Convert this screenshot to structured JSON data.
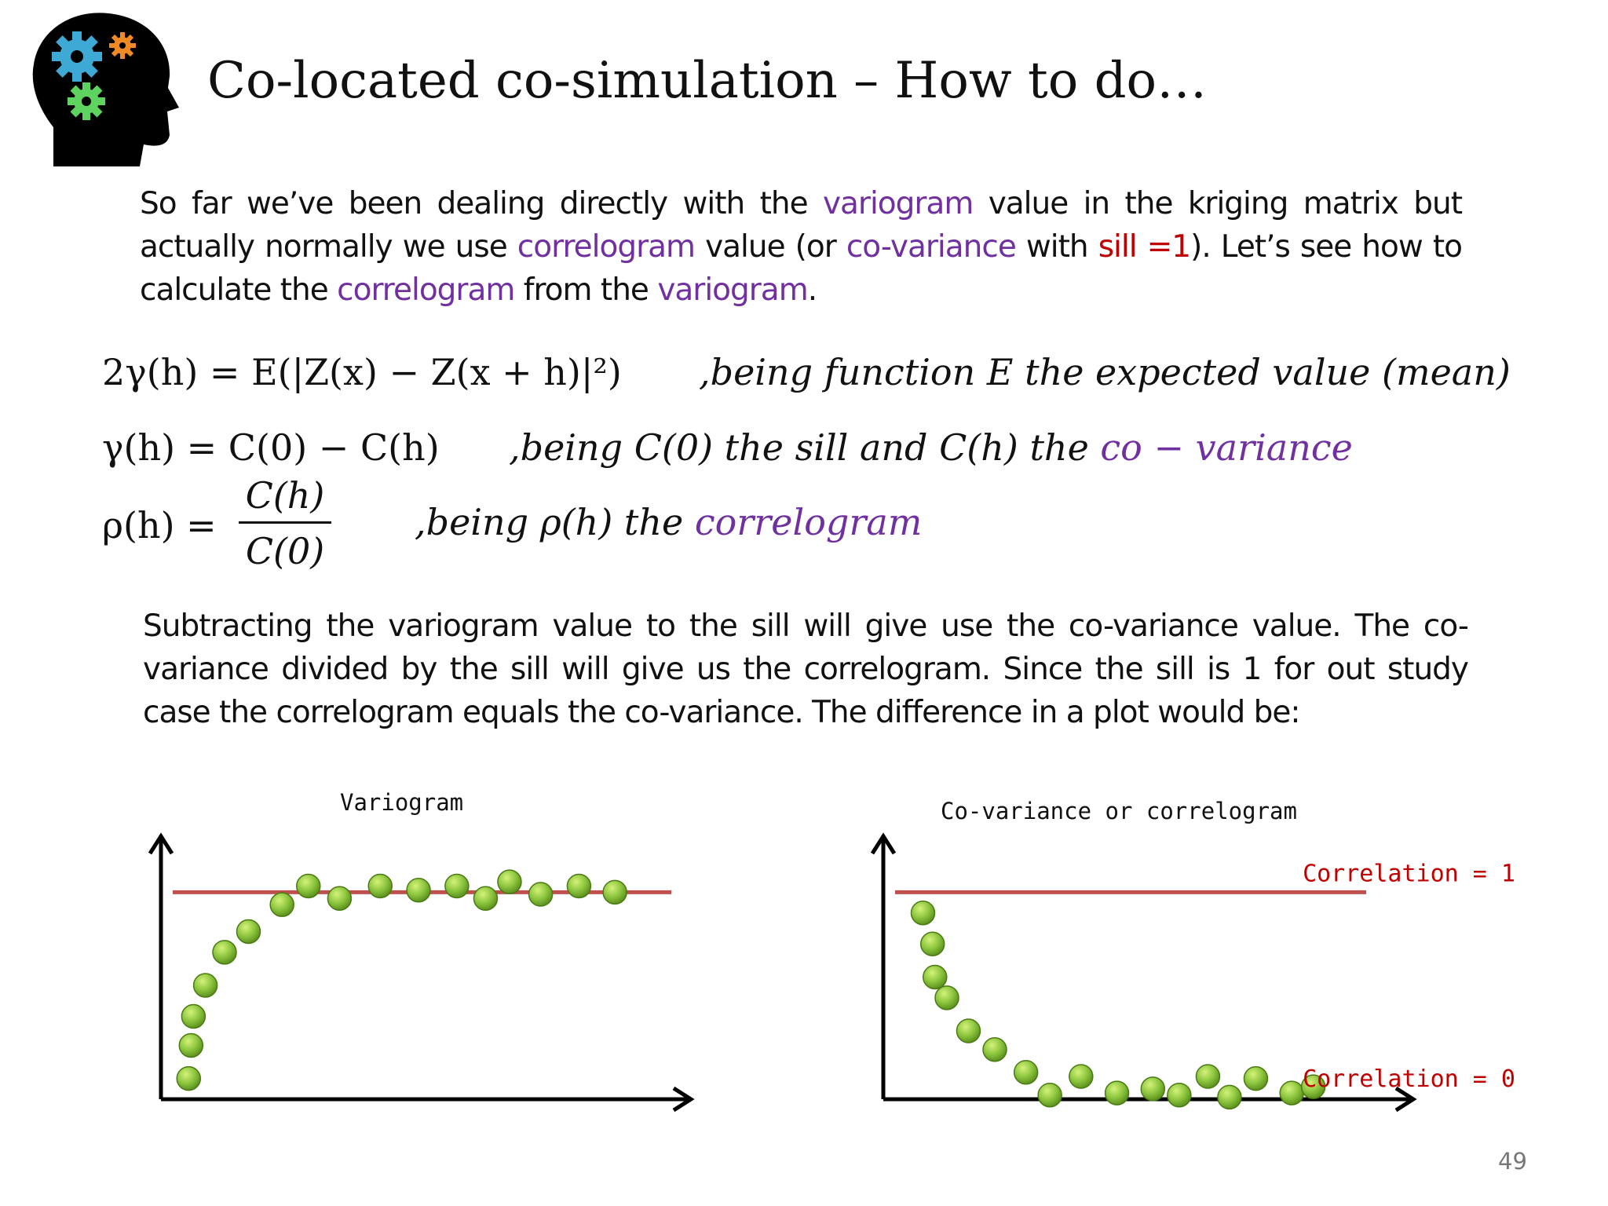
{
  "title": "Co-located co-simulation – How to do…",
  "intro": {
    "t1": "So far we’ve been dealing directly with the ",
    "variogram1": "variogram",
    "t2": " value in the kriging matrix but actually normally we use ",
    "correlogram1": "correlogram",
    "t3": " value (or ",
    "covariance1": "co-variance",
    "t4": " with ",
    "sill": "sill =1",
    "t5": "). Let’s see how to calculate the ",
    "correlogram2": "correlogram",
    "t6": " from the ",
    "variogram2": "variogram",
    "t7": "."
  },
  "equations": {
    "eq1_lhs": "2γ(h) = E(|Z(x) − Z(x + h)|²)",
    "eq1_note": ",being function E the expected value (mean)",
    "eq2_lhs": "γ(h) = C(0) − C(h)",
    "eq2_note": ",being C(0) the sill and C(h) the ",
    "eq2_note_highlight": "co − variance",
    "eq3_lhs": "ρ(h) =",
    "eq3_num": "C(h)",
    "eq3_den": "C(0)",
    "eq3_note": ",being ρ(h) the ",
    "eq3_note_highlight": "correlogram"
  },
  "outro": "Subtracting the variogram value to the sill will give use the co-variance value. The co-variance divided by the sill will give us the correlogram. Since the sill is 1 for out study case the correlogram equals the co-variance. The difference in a plot would be:",
  "colors": {
    "purple": "#7030a0",
    "red": "#c00000",
    "sill_line": "#c0504d",
    "dot_fill": "#8dc63f",
    "dot_stroke": "#4a7a12"
  },
  "chart_data": [
    {
      "type": "scatter",
      "title": "Variogram",
      "xlabel": "",
      "ylabel": "",
      "xlim": [
        0,
        20
      ],
      "ylim": [
        0,
        1.1
      ],
      "reference_line": {
        "y": 1.0,
        "label": ""
      },
      "points": [
        [
          0.5,
          0.1
        ],
        [
          0.6,
          0.26
        ],
        [
          0.7,
          0.4
        ],
        [
          1.2,
          0.55
        ],
        [
          2.0,
          0.71
        ],
        [
          3.0,
          0.81
        ],
        [
          4.4,
          0.94
        ],
        [
          5.5,
          1.03
        ],
        [
          6.8,
          0.97
        ],
        [
          8.5,
          1.03
        ],
        [
          10.1,
          1.01
        ],
        [
          11.7,
          1.03
        ],
        [
          12.9,
          0.97
        ],
        [
          13.9,
          1.05
        ],
        [
          15.2,
          0.99
        ],
        [
          16.8,
          1.03
        ],
        [
          18.3,
          1.0
        ]
      ]
    },
    {
      "type": "scatter",
      "title": "Co-variance or correlogram",
      "xlabel": "",
      "ylabel": "",
      "xlim": [
        0,
        20
      ],
      "ylim": [
        0,
        1.1
      ],
      "reference_line": {
        "y": 1.0,
        "label": "Correlation = 1"
      },
      "zero_label": "Correlation = 0",
      "points": [
        [
          1.0,
          0.9
        ],
        [
          1.4,
          0.75
        ],
        [
          1.5,
          0.59
        ],
        [
          2.0,
          0.49
        ],
        [
          2.9,
          0.33
        ],
        [
          4.0,
          0.24
        ],
        [
          5.3,
          0.13
        ],
        [
          6.3,
          0.02
        ],
        [
          7.6,
          0.11
        ],
        [
          9.1,
          0.03
        ],
        [
          10.6,
          0.05
        ],
        [
          11.7,
          0.02
        ],
        [
          12.9,
          0.11
        ],
        [
          13.8,
          0.01
        ],
        [
          14.9,
          0.1
        ],
        [
          16.4,
          0.03
        ],
        [
          17.3,
          0.06
        ]
      ]
    }
  ],
  "page_number": "49"
}
